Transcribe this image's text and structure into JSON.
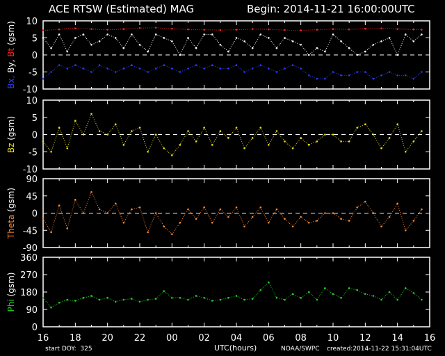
{
  "header": {
    "title": "ACE RTSW (Estimated) MAG",
    "begin": "Begin: 2014-11-21 16:00:00UTC"
  },
  "footer": {
    "start_doy": "start DOY:  325",
    "xlabel": "UTC(hours)",
    "credit": "NOAA/SWPC",
    "created": "created:2014-11-22 15:31:04UTC"
  },
  "colors": {
    "background": "#000000",
    "axes": "#ffffff",
    "bt": "#ff2020",
    "bxby_white": "#ffffff",
    "bx_blue": "#2a3cff",
    "bz": "#e8e010",
    "theta": "#ff8a30",
    "phi": "#20d020"
  },
  "chart_data": [
    {
      "type": "scatter",
      "panel": "B",
      "ylabel_parts": [
        {
          "text": "Bx,",
          "color": "#2a3cff"
        },
        {
          "text": " By,",
          "color": "#ffffff"
        },
        {
          "text": " Bt",
          "color": "#ff2020"
        },
        {
          "text": " (gsm)",
          "color": "#ffffff"
        }
      ],
      "ylim": [
        -10,
        10
      ],
      "yticks": [
        "10",
        "5",
        "0",
        "-5",
        "-10"
      ],
      "yticks_values": [
        10,
        5,
        0,
        -5,
        -10
      ],
      "xlim": [
        0,
        24
      ],
      "xticks": [
        "16",
        "18",
        "20",
        "22",
        "00",
        "02",
        "04",
        "06",
        "08",
        "10",
        "12",
        "14",
        "16"
      ],
      "zero_line": true,
      "series": [
        {
          "color": "#ff2020",
          "x": [
            0,
            1,
            2,
            3,
            4,
            5,
            6,
            7,
            8,
            9,
            10,
            11,
            12,
            13,
            14,
            15,
            16,
            17,
            18,
            19,
            20,
            21,
            22,
            23,
            23.5
          ],
          "y": [
            7.2,
            7.5,
            7.8,
            7.6,
            7.4,
            7.6,
            7.9,
            8.0,
            7.7,
            7.5,
            7.4,
            7.3,
            7.4,
            7.6,
            7.5,
            7.3,
            7.2,
            7.4,
            7.6,
            7.5,
            7.7,
            7.8,
            7.6,
            7.5,
            7.4
          ]
        },
        {
          "color": "#ffffff",
          "x": [
            0,
            0.5,
            1,
            1.5,
            2,
            2.5,
            3,
            3.5,
            4,
            4.5,
            5,
            5.5,
            6,
            6.5,
            7,
            7.5,
            8,
            8.5,
            9,
            9.5,
            10,
            10.5,
            11,
            11.5,
            12,
            12.5,
            13,
            13.5,
            14,
            14.5,
            15,
            15.5,
            16,
            16.5,
            17,
            17.5,
            18,
            18.5,
            19,
            19.5,
            20,
            20.5,
            21,
            21.5,
            22,
            22.5,
            23,
            23.5
          ],
          "y": [
            5,
            2,
            6,
            1,
            5,
            6,
            3,
            4,
            6,
            5,
            2,
            6,
            3,
            1,
            6,
            5,
            4,
            0,
            5,
            2,
            6,
            6,
            3,
            1,
            5,
            4,
            2,
            6,
            5,
            2,
            5,
            4,
            3,
            0,
            2,
            1,
            6,
            4,
            2,
            0,
            1,
            3,
            4,
            5,
            0,
            6,
            4,
            6
          ]
        },
        {
          "color": "#2a3cff",
          "x": [
            0,
            0.5,
            1,
            1.5,
            2,
            2.5,
            3,
            3.5,
            4,
            4.5,
            5,
            5.5,
            6,
            6.5,
            7,
            7.5,
            8,
            8.5,
            9,
            9.5,
            10,
            10.5,
            11,
            11.5,
            12,
            12.5,
            13,
            13.5,
            14,
            14.5,
            15,
            15.5,
            16,
            16.5,
            17,
            17.5,
            18,
            18.5,
            19,
            19.5,
            20,
            20.5,
            21,
            21.5,
            22,
            22.5,
            23,
            23.5
          ],
          "y": [
            -7,
            -5,
            -3,
            -4,
            -3,
            -4,
            -5,
            -3,
            -4,
            -5,
            -4,
            -3,
            -4,
            -5,
            -4,
            -3,
            -4,
            -5,
            -4,
            -3,
            -4,
            -3,
            -4,
            -4,
            -3,
            -5,
            -4,
            -3,
            -4,
            -5,
            -4,
            -3,
            -4,
            -6,
            -7,
            -7,
            -5,
            -6,
            -6,
            -5,
            -5,
            -7,
            -6,
            -5,
            -6,
            -6,
            -7,
            -5
          ]
        }
      ]
    },
    {
      "type": "scatter",
      "panel": "Bz",
      "ylabel_parts": [
        {
          "text": "Bz",
          "color": "#e8e010"
        },
        {
          "text": "  (gsm)",
          "color": "#ffffff"
        }
      ],
      "ylim": [
        -10,
        10
      ],
      "yticks": [
        "10",
        "5",
        "0",
        "-5",
        "-10"
      ],
      "yticks_values": [
        10,
        5,
        0,
        -5,
        -10
      ],
      "xlim": [
        0,
        24
      ],
      "xticks": [
        "16",
        "18",
        "20",
        "22",
        "00",
        "02",
        "04",
        "06",
        "08",
        "10",
        "12",
        "14",
        "16"
      ],
      "zero_line": true,
      "series": [
        {
          "color": "#e8e010",
          "x": [
            0,
            0.5,
            1,
            1.5,
            2,
            2.5,
            3,
            3.5,
            4,
            4.5,
            5,
            5.5,
            6,
            6.5,
            7,
            7.5,
            8,
            8.5,
            9,
            9.5,
            10,
            10.5,
            11,
            11.5,
            12,
            12.5,
            13,
            13.5,
            14,
            14.5,
            15,
            15.5,
            16,
            16.5,
            17,
            17.5,
            18,
            18.5,
            19,
            19.5,
            20,
            20.5,
            21,
            21.5,
            22,
            22.5,
            23,
            23.5
          ],
          "y": [
            -2,
            -5,
            2,
            -4,
            4,
            0,
            6,
            1,
            0,
            3,
            -3,
            1,
            2,
            -5,
            0,
            -4,
            -6,
            -3,
            1,
            -2,
            2,
            -3,
            1,
            -1,
            2,
            -4,
            -1,
            2,
            -3,
            1,
            -2,
            -4,
            -1,
            -3,
            -2,
            0,
            0,
            -2,
            -2,
            2,
            3,
            0,
            -4,
            -1,
            3,
            -5,
            -2,
            1
          ]
        }
      ]
    },
    {
      "type": "scatter",
      "panel": "Theta",
      "ylabel_parts": [
        {
          "text": "Theta",
          "color": "#ff8a30"
        },
        {
          "text": "  (gsm)",
          "color": "#ffffff"
        }
      ],
      "ylim": [
        -90,
        90
      ],
      "yticks": [
        "90",
        "45",
        "0",
        "-45",
        "-90"
      ],
      "yticks_values": [
        90,
        45,
        0,
        -45,
        -90
      ],
      "xlim": [
        0,
        24
      ],
      "xticks": [
        "16",
        "18",
        "20",
        "22",
        "00",
        "02",
        "04",
        "06",
        "08",
        "10",
        "12",
        "14",
        "16"
      ],
      "zero_line": true,
      "series": [
        {
          "color": "#ff8a30",
          "x": [
            0,
            0.5,
            1,
            1.5,
            2,
            2.5,
            3,
            3.5,
            4,
            4.5,
            5,
            5.5,
            6,
            6.5,
            7,
            7.5,
            8,
            8.5,
            9,
            9.5,
            10,
            10.5,
            11,
            11.5,
            12,
            12.5,
            13,
            13.5,
            14,
            14.5,
            15,
            15.5,
            16,
            16.5,
            17,
            17.5,
            18,
            18.5,
            19,
            19.5,
            20,
            20.5,
            21,
            21.5,
            22,
            22.5,
            23,
            23.5
          ],
          "y": [
            -15,
            -50,
            20,
            -40,
            35,
            0,
            55,
            10,
            0,
            25,
            -25,
            10,
            15,
            -50,
            0,
            -35,
            -55,
            -25,
            10,
            -15,
            15,
            -25,
            10,
            -10,
            15,
            -35,
            -10,
            15,
            -25,
            10,
            -15,
            -35,
            -10,
            -25,
            -20,
            0,
            0,
            -15,
            -20,
            15,
            30,
            0,
            -35,
            -10,
            25,
            -45,
            -20,
            10
          ]
        }
      ]
    },
    {
      "type": "scatter",
      "panel": "Phi",
      "ylabel_parts": [
        {
          "text": "Phi",
          "color": "#20d020"
        },
        {
          "text": "  (gsm)",
          "color": "#ffffff"
        }
      ],
      "ylim": [
        0,
        360
      ],
      "yticks": [
        "360",
        "270",
        "180",
        "90",
        "0"
      ],
      "yticks_values": [
        360,
        270,
        180,
        90,
        0
      ],
      "xlim": [
        0,
        24
      ],
      "xticks": [
        "16",
        "18",
        "20",
        "22",
        "00",
        "02",
        "04",
        "06",
        "08",
        "10",
        "12",
        "14",
        "16"
      ],
      "zero_line": false,
      "series": [
        {
          "color": "#20d020",
          "x": [
            0,
            0.5,
            1,
            1.5,
            2,
            2.5,
            3,
            3.5,
            4,
            4.5,
            5,
            5.5,
            6,
            6.5,
            7,
            7.5,
            8,
            8.5,
            9,
            9.5,
            10,
            10.5,
            11,
            11.5,
            12,
            12.5,
            13,
            13.5,
            14,
            14.5,
            15,
            15.5,
            16,
            16.5,
            17,
            17.5,
            18,
            18.5,
            19,
            19.5,
            20,
            20.5,
            21,
            21.5,
            22,
            22.5,
            23,
            23.5
          ],
          "y": [
            150,
            100,
            125,
            140,
            135,
            150,
            160,
            140,
            150,
            130,
            140,
            145,
            130,
            140,
            145,
            185,
            150,
            150,
            140,
            160,
            150,
            135,
            140,
            150,
            160,
            140,
            145,
            190,
            230,
            150,
            140,
            170,
            150,
            180,
            140,
            200,
            170,
            150,
            200,
            190,
            170,
            160,
            140,
            180,
            140,
            200,
            175,
            140
          ]
        }
      ]
    }
  ]
}
